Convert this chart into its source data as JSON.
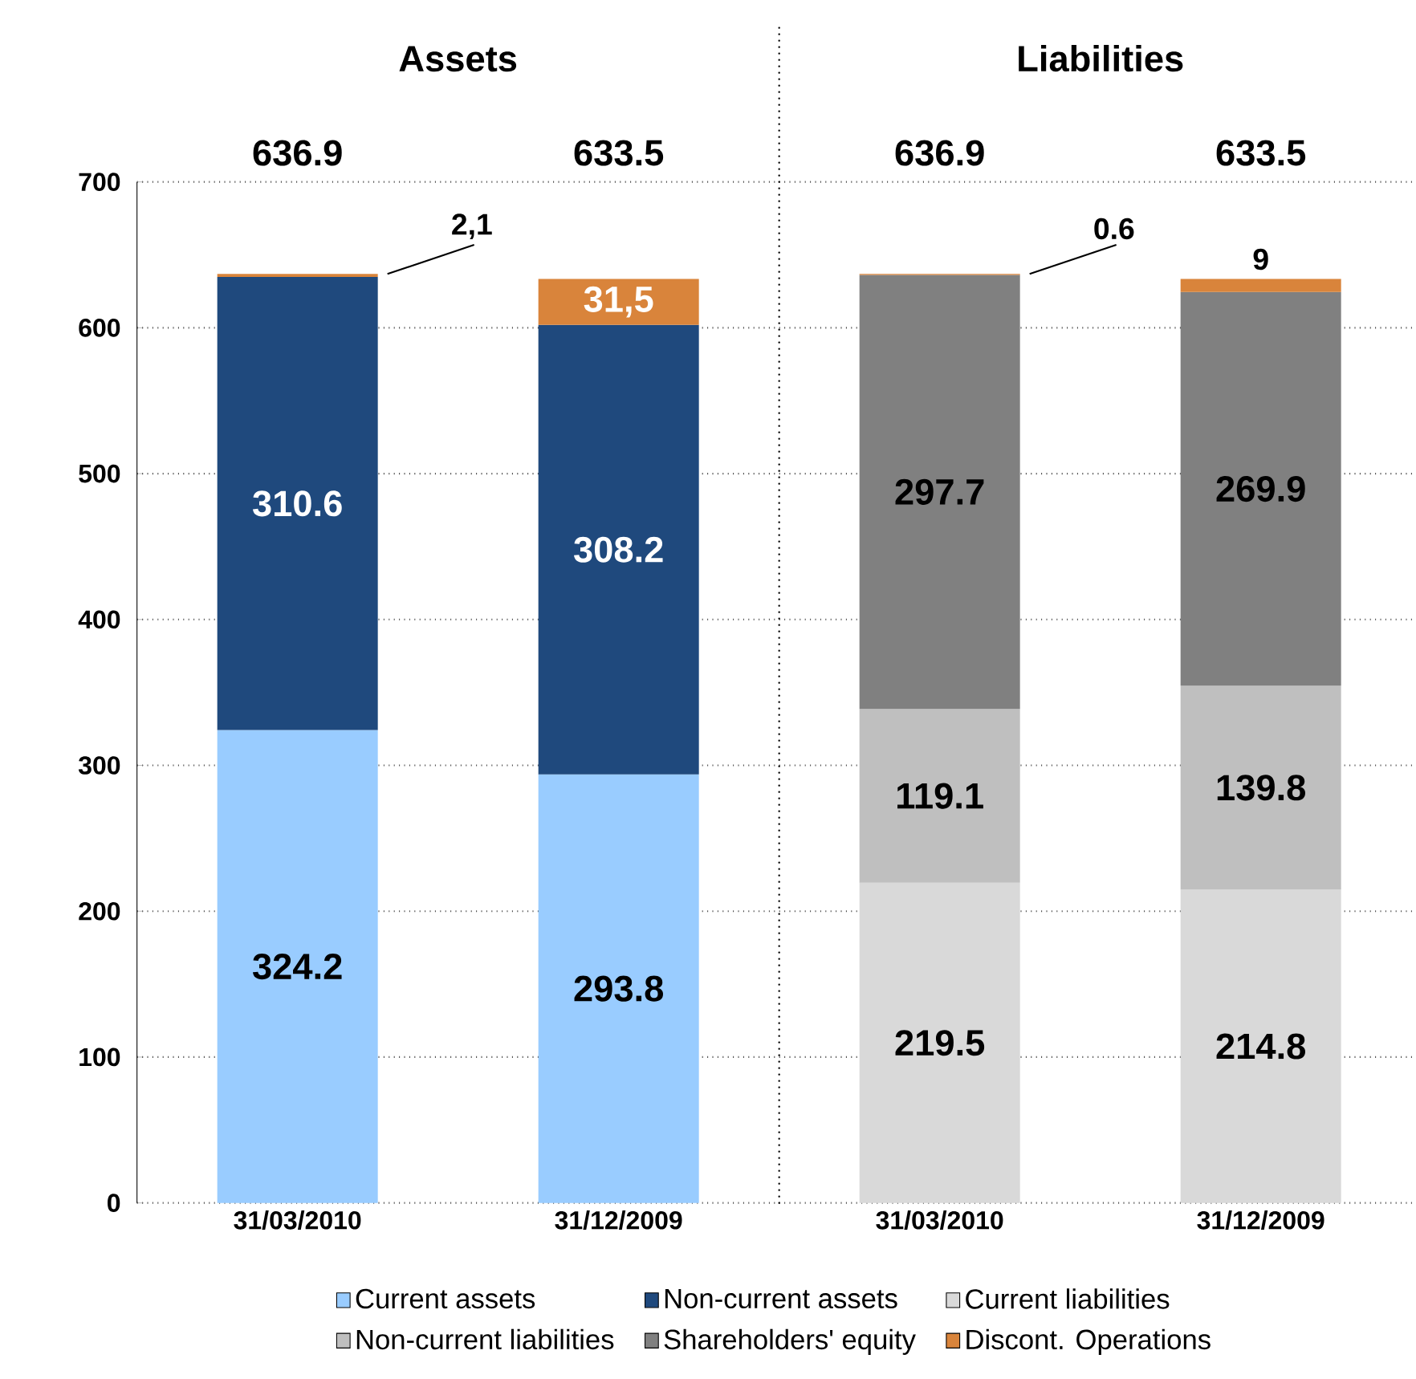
{
  "chart_data": {
    "type": "bar",
    "stacked": true,
    "categories": [
      "31/03/2010",
      "31/12/2009",
      "31/03/2010",
      "31/12/2009"
    ],
    "series": [
      {
        "name": "Current assets",
        "color": "#99ccff",
        "values": [
          324.2,
          293.8,
          null,
          null
        ],
        "value_labels": [
          "324.2",
          "293.8",
          null,
          null
        ]
      },
      {
        "name": "Non-current assets",
        "color": "#1f497d",
        "values": [
          310.6,
          308.2,
          null,
          null
        ],
        "value_labels": [
          "310.6",
          "308.2",
          null,
          null
        ]
      },
      {
        "name": "Current liabilities",
        "color": "#d9d9d9",
        "values": [
          null,
          null,
          219.5,
          214.8
        ],
        "value_labels": [
          null,
          null,
          "219.5",
          "214.8"
        ]
      },
      {
        "name": "Non-current liabilities",
        "color": "#bfbfbf",
        "values": [
          null,
          null,
          119.1,
          139.8
        ],
        "value_labels": [
          null,
          null,
          "119.1",
          "139.8"
        ]
      },
      {
        "name": "Shareholders' equity",
        "color": "#808080",
        "values": [
          null,
          null,
          297.7,
          269.9
        ],
        "value_labels": [
          null,
          null,
          "297.7",
          "269.9"
        ]
      },
      {
        "name": "Discont. Operations",
        "color": "#d9843b",
        "values": [
          2.1,
          31.5,
          0.6,
          9
        ],
        "value_labels": [
          "2,1",
          "31,5",
          "0.6",
          "9"
        ]
      }
    ],
    "totals": [
      "636.9",
      "633.5",
      "636.9",
      "633.5"
    ],
    "annotations": [
      "Assets",
      "Liabilities"
    ],
    "ylim": [
      0,
      700
    ],
    "yticks": [
      0,
      100,
      200,
      300,
      400,
      500,
      600,
      700
    ],
    "grid": "y",
    "legend": "bottom"
  }
}
